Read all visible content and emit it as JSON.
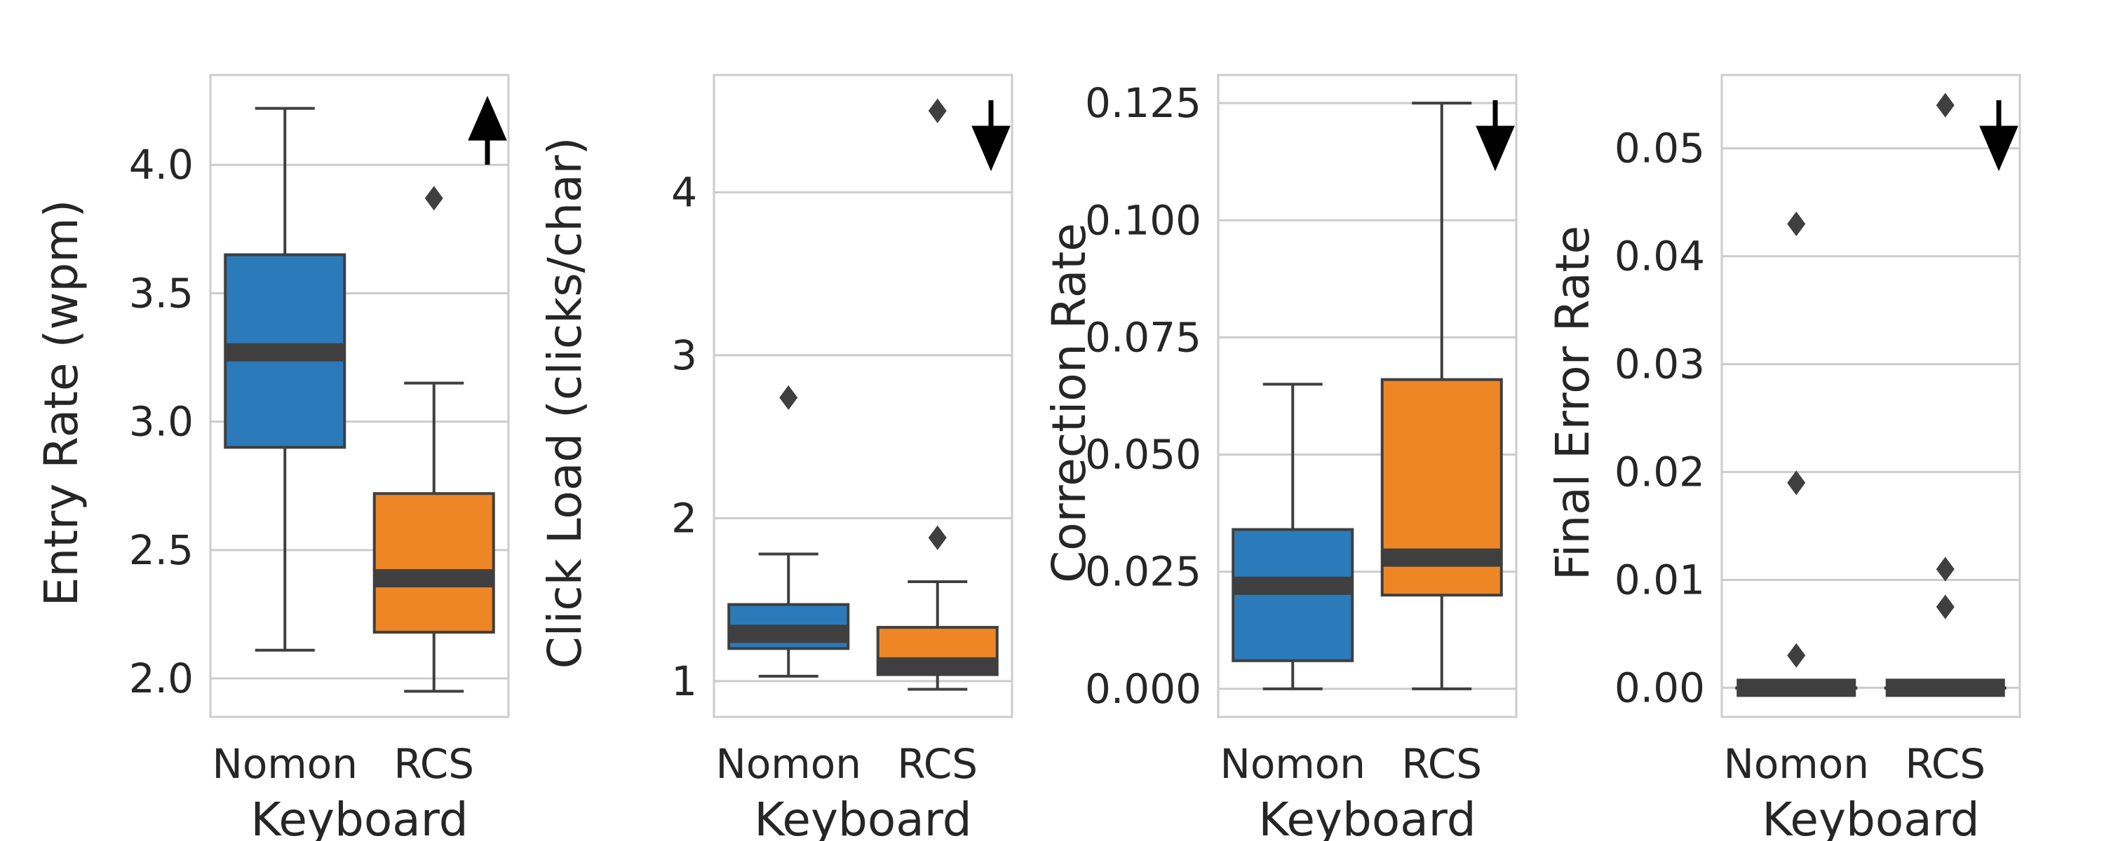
{
  "chart_data": [
    {
      "type": "box",
      "xlabel": "Keyboard",
      "ylabel": "Entry Rate (wpm)",
      "categories": [
        "Nomon",
        "RCS"
      ],
      "ylim": [
        1.85,
        4.35
      ],
      "yticks": [
        2.0,
        2.5,
        3.0,
        3.5,
        4.0
      ],
      "ytick_labels": [
        "2.0",
        "2.5",
        "3.0",
        "3.5",
        "4.0"
      ],
      "grid": true,
      "direction_arrow": "up",
      "boxes": [
        {
          "category": "Nomon",
          "whislo": 2.11,
          "q1": 2.9,
          "median": 3.27,
          "q3": 3.65,
          "whishi": 4.22,
          "fliers": [],
          "color": "#2b7bba"
        },
        {
          "category": "RCS",
          "whislo": 1.95,
          "q1": 2.18,
          "median": 2.39,
          "q3": 2.72,
          "whishi": 3.15,
          "fliers": [
            3.87
          ],
          "color": "#ee8626"
        }
      ]
    },
    {
      "type": "box",
      "xlabel": "Keyboard",
      "ylabel": "Click Load (clicks/char)",
      "categories": [
        "Nomon",
        "RCS"
      ],
      "ylim": [
        0.78,
        4.72
      ],
      "yticks": [
        1,
        2,
        3,
        4
      ],
      "ytick_labels": [
        "1",
        "2",
        "3",
        "4"
      ],
      "grid": true,
      "direction_arrow": "down",
      "boxes": [
        {
          "category": "Nomon",
          "whislo": 1.03,
          "q1": 1.2,
          "median": 1.29,
          "q3": 1.47,
          "whishi": 1.78,
          "fliers": [
            2.74
          ],
          "color": "#2b7bba"
        },
        {
          "category": "RCS",
          "whislo": 0.95,
          "q1": 1.04,
          "median": 1.09,
          "q3": 1.33,
          "whishi": 1.61,
          "fliers": [
            1.88,
            4.5
          ],
          "color": "#ee8626"
        }
      ]
    },
    {
      "type": "box",
      "xlabel": "Keyboard",
      "ylabel": "Correction Rate",
      "categories": [
        "Nomon",
        "RCS"
      ],
      "ylim": [
        -0.006,
        0.131
      ],
      "yticks": [
        0.0,
        0.025,
        0.05,
        0.075,
        0.1,
        0.125
      ],
      "ytick_labels": [
        "0.000",
        "0.025",
        "0.050",
        "0.075",
        "0.100",
        "0.125"
      ],
      "grid": true,
      "direction_arrow": "down",
      "boxes": [
        {
          "category": "Nomon",
          "whislo": 0.0,
          "q1": 0.006,
          "median": 0.022,
          "q3": 0.034,
          "whishi": 0.065,
          "fliers": [],
          "color": "#2b7bba"
        },
        {
          "category": "RCS",
          "whislo": 0.0,
          "q1": 0.02,
          "median": 0.028,
          "q3": 0.066,
          "whishi": 0.125,
          "fliers": [],
          "color": "#ee8626"
        }
      ]
    },
    {
      "type": "box",
      "xlabel": "Keyboard",
      "ylabel": "Final Error Rate",
      "categories": [
        "Nomon",
        "RCS"
      ],
      "ylim": [
        -0.0027,
        0.0568
      ],
      "yticks": [
        0.0,
        0.01,
        0.02,
        0.03,
        0.04,
        0.05
      ],
      "ytick_labels": [
        "0.00",
        "0.01",
        "0.02",
        "0.03",
        "0.04",
        "0.05"
      ],
      "grid": true,
      "direction_arrow": "down",
      "boxes": [
        {
          "category": "Nomon",
          "whislo": 0.0,
          "q1": 0.0,
          "median": 0.0,
          "q3": 0.0,
          "whishi": 0.0,
          "fliers": [
            0.003,
            0.019,
            0.043
          ],
          "color": "#2b7bba"
        },
        {
          "category": "RCS",
          "whislo": 0.0,
          "q1": 0.0,
          "median": 0.0,
          "q3": 0.0,
          "whishi": 0.0,
          "fliers": [
            0.0075,
            0.011,
            0.054
          ],
          "color": "#ee8626"
        }
      ]
    }
  ]
}
